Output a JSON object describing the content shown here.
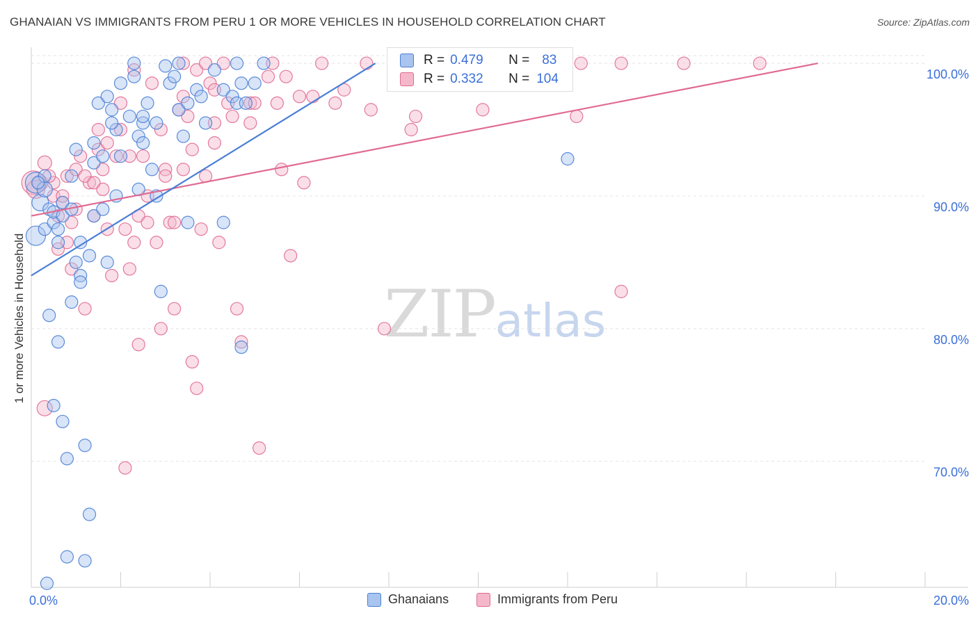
{
  "title": "GHANAIAN VS IMMIGRANTS FROM PERU 1 OR MORE VEHICLES IN HOUSEHOLD CORRELATION CHART",
  "source": "Source: ZipAtlas.com",
  "watermark": {
    "part1": "ZIP",
    "part2": "atlas"
  },
  "colors": {
    "ghanaians": "#4a7fd6",
    "ghanaians_fill": "#a9c4ee",
    "peru": "#e06a92",
    "peru_fill": "#f5b8cb",
    "axis_label": "#3a6fd8",
    "grid": "#e3e3e3"
  },
  "stats": {
    "ghanaians": {
      "r_label": "R =",
      "r": "0.479",
      "n_label": "N =",
      "n": "83"
    },
    "peru": {
      "r_label": "R =",
      "r": "0.332",
      "n_label": "N =",
      "n": "104"
    }
  },
  "legend": {
    "ghanaians": "Ghanaians",
    "peru": "Immigrants from Peru"
  },
  "chart_data": {
    "type": "scatter",
    "title": "GHANAIAN VS IMMIGRANTS FROM PERU 1 OR MORE VEHICLES IN HOUSEHOLD CORRELATION CHART",
    "xlabel": "",
    "ylabel": "1 or more Vehicles in Household",
    "xlim": [
      0,
      20
    ],
    "ylim": [
      60.5,
      101
    ],
    "x_tick_labels": [
      "0.0%",
      "20.0%"
    ],
    "y_ticks": [
      70,
      80,
      90,
      100
    ],
    "y_tick_labels": [
      "70.0%",
      "80.0%",
      "90.0%",
      "100.0%"
    ],
    "grid": true,
    "legend_position": "bottom-center",
    "series": [
      {
        "name": "Ghanaians",
        "trend": {
          "x": [
            0.0,
            7.7
          ],
          "y": [
            84.0,
            100.0
          ]
        },
        "points": [
          [
            0.1,
            91.0,
            15
          ],
          [
            0.1,
            87.0,
            14
          ],
          [
            0.2,
            89.5,
            12
          ],
          [
            0.3,
            90.5,
            11
          ],
          [
            0.3,
            91.5,
            9
          ],
          [
            0.3,
            87.5,
            9
          ],
          [
            0.4,
            89.0,
            9
          ],
          [
            0.4,
            81.0,
            9
          ],
          [
            0.5,
            88.0,
            9
          ],
          [
            0.5,
            88.8,
            9
          ],
          [
            0.5,
            74.2,
            9
          ],
          [
            0.6,
            87.5,
            9
          ],
          [
            0.6,
            86.5,
            9
          ],
          [
            0.6,
            79.0,
            9
          ],
          [
            0.7,
            89.5,
            9
          ],
          [
            0.7,
            88.5,
            9
          ],
          [
            0.7,
            73.0,
            9
          ],
          [
            0.8,
            70.2,
            9
          ],
          [
            0.8,
            62.8,
            9
          ],
          [
            0.9,
            89.0,
            9
          ],
          [
            0.9,
            82.0,
            9
          ],
          [
            1.0,
            93.5,
            9
          ],
          [
            1.0,
            85.0,
            9
          ],
          [
            1.1,
            84.0,
            9
          ],
          [
            1.1,
            83.5,
            9
          ],
          [
            1.1,
            86.5,
            9
          ],
          [
            1.2,
            71.2,
            9
          ],
          [
            1.2,
            62.5,
            9
          ],
          [
            1.3,
            66.0,
            9
          ],
          [
            1.4,
            94.0,
            9
          ],
          [
            1.4,
            92.5,
            9
          ],
          [
            1.4,
            88.5,
            9
          ],
          [
            1.5,
            97.0,
            9
          ],
          [
            1.6,
            93.0,
            9
          ],
          [
            1.6,
            89.0,
            9
          ],
          [
            1.7,
            97.5,
            9
          ],
          [
            1.7,
            85.0,
            9
          ],
          [
            1.8,
            96.5,
            9
          ],
          [
            1.9,
            95.0,
            9
          ],
          [
            2.0,
            98.5,
            9
          ],
          [
            2.0,
            93.0,
            9
          ],
          [
            2.2,
            96.0,
            9
          ],
          [
            2.3,
            99.0,
            9
          ],
          [
            2.4,
            94.5,
            9
          ],
          [
            2.5,
            95.5,
            9
          ],
          [
            2.5,
            96.0,
            9
          ],
          [
            2.6,
            97.0,
            9
          ],
          [
            2.7,
            92.0,
            9
          ],
          [
            2.8,
            95.5,
            9
          ],
          [
            2.8,
            90.0,
            9
          ],
          [
            3.1,
            98.5,
            9
          ],
          [
            3.2,
            99.0,
            9
          ],
          [
            3.3,
            96.5,
            9
          ],
          [
            3.4,
            94.5,
            9
          ],
          [
            3.5,
            97.0,
            9
          ],
          [
            3.7,
            98.0,
            9
          ],
          [
            3.8,
            97.5,
            9
          ],
          [
            3.9,
            95.5,
            9
          ],
          [
            4.1,
            99.5,
            9
          ],
          [
            4.3,
            98.0,
            9
          ],
          [
            4.5,
            97.5,
            9
          ],
          [
            4.6,
            97.0,
            9
          ],
          [
            4.7,
            98.5,
            9
          ],
          [
            4.8,
            97.0,
            9
          ],
          [
            5.0,
            98.5,
            9
          ],
          [
            1.3,
            85.5,
            9
          ],
          [
            0.9,
            91.5,
            9
          ],
          [
            1.9,
            90.0,
            9
          ],
          [
            2.5,
            94.0,
            9
          ],
          [
            3.0,
            99.8,
            9
          ],
          [
            3.3,
            100.0,
            9
          ],
          [
            2.3,
            100.0,
            9
          ],
          [
            4.6,
            100.0,
            9
          ],
          [
            3.5,
            88.0,
            9
          ],
          [
            4.3,
            88.0,
            9
          ],
          [
            2.9,
            82.8,
            9
          ],
          [
            4.7,
            78.6,
            9
          ],
          [
            12.0,
            92.8,
            9
          ],
          [
            0.35,
            60.8,
            9
          ],
          [
            5.2,
            100.0,
            9
          ],
          [
            0.15,
            91.0,
            9
          ],
          [
            2.4,
            90.5,
            9
          ],
          [
            1.8,
            95.5,
            9
          ]
        ]
      },
      {
        "name": "Immigrants from Peru",
        "trend": {
          "x": [
            0.0,
            17.6
          ],
          "y": [
            88.5,
            100.0
          ]
        },
        "points": [
          [
            0.05,
            91.0,
            17
          ],
          [
            0.1,
            90.5,
            13
          ],
          [
            0.2,
            91.0,
            11
          ],
          [
            0.3,
            92.5,
            10
          ],
          [
            0.3,
            74.0,
            11
          ],
          [
            0.5,
            91.0,
            9
          ],
          [
            0.5,
            90.0,
            9
          ],
          [
            0.6,
            86.0,
            9
          ],
          [
            0.6,
            88.5,
            9
          ],
          [
            0.7,
            89.5,
            9
          ],
          [
            0.8,
            91.5,
            9
          ],
          [
            0.9,
            88.0,
            9
          ],
          [
            0.9,
            84.5,
            9
          ],
          [
            1.0,
            92.0,
            9
          ],
          [
            1.1,
            93.0,
            9
          ],
          [
            1.2,
            81.5,
            9
          ],
          [
            1.3,
            91.0,
            9
          ],
          [
            1.4,
            88.5,
            9
          ],
          [
            1.5,
            93.5,
            9
          ],
          [
            1.5,
            95.0,
            9
          ],
          [
            1.6,
            90.5,
            9
          ],
          [
            1.7,
            87.5,
            9
          ],
          [
            1.8,
            84.0,
            9
          ],
          [
            1.9,
            93.0,
            9
          ],
          [
            2.0,
            97.0,
            9
          ],
          [
            2.1,
            87.5,
            9
          ],
          [
            2.1,
            69.5,
            9
          ],
          [
            2.2,
            84.5,
            9
          ],
          [
            2.3,
            86.5,
            9
          ],
          [
            2.4,
            88.5,
            9
          ],
          [
            2.4,
            78.8,
            9
          ],
          [
            2.5,
            93.0,
            9
          ],
          [
            2.6,
            90.0,
            9
          ],
          [
            2.7,
            98.5,
            9
          ],
          [
            2.8,
            86.5,
            9
          ],
          [
            2.9,
            95.0,
            9
          ],
          [
            2.9,
            80.0,
            9
          ],
          [
            3.0,
            92.0,
            9
          ],
          [
            3.1,
            88.0,
            9
          ],
          [
            3.2,
            88.0,
            9
          ],
          [
            3.2,
            81.5,
            9
          ],
          [
            3.3,
            96.5,
            9
          ],
          [
            3.4,
            97.5,
            9
          ],
          [
            3.5,
            96.0,
            9
          ],
          [
            3.6,
            77.5,
            9
          ],
          [
            3.7,
            99.5,
            9
          ],
          [
            3.7,
            75.5,
            9
          ],
          [
            3.8,
            87.5,
            9
          ],
          [
            3.9,
            91.5,
            9
          ],
          [
            4.0,
            98.5,
            9
          ],
          [
            4.1,
            95.5,
            9
          ],
          [
            4.2,
            86.5,
            9
          ],
          [
            4.4,
            97.0,
            9
          ],
          [
            4.6,
            81.5,
            9
          ],
          [
            4.7,
            79.0,
            9
          ],
          [
            4.9,
            97.0,
            9
          ],
          [
            5.1,
            71.0,
            9
          ],
          [
            5.3,
            99.0,
            9
          ],
          [
            5.5,
            97.0,
            9
          ],
          [
            5.6,
            92.0,
            9
          ],
          [
            5.8,
            85.5,
            9
          ],
          [
            6.1,
            91.0,
            9
          ],
          [
            6.5,
            100.0,
            9
          ],
          [
            6.8,
            97.0,
            9
          ],
          [
            7.0,
            98.0,
            9
          ],
          [
            7.5,
            100.0,
            9
          ],
          [
            7.6,
            96.5,
            9
          ],
          [
            7.9,
            80.0,
            9
          ],
          [
            8.5,
            95.0,
            9
          ],
          [
            8.6,
            96.0,
            9
          ],
          [
            10.1,
            96.5,
            9
          ],
          [
            12.2,
            96.0,
            9
          ],
          [
            12.3,
            100.0,
            9
          ],
          [
            13.2,
            100.0,
            9
          ],
          [
            14.6,
            100.0,
            9
          ],
          [
            16.3,
            100.0,
            9
          ],
          [
            0.4,
            91.5,
            9
          ],
          [
            0.8,
            86.5,
            9
          ],
          [
            1.2,
            91.5,
            9
          ],
          [
            1.6,
            92.0,
            9
          ],
          [
            2.2,
            93.0,
            9
          ],
          [
            2.6,
            88.0,
            9
          ],
          [
            3.0,
            91.5,
            9
          ],
          [
            3.4,
            92.0,
            9
          ],
          [
            3.6,
            93.5,
            9
          ],
          [
            4.1,
            98.0,
            9
          ],
          [
            4.5,
            96.0,
            9
          ],
          [
            5.0,
            97.0,
            9
          ],
          [
            5.7,
            99.0,
            9
          ],
          [
            6.0,
            97.5,
            9
          ],
          [
            1.4,
            91.0,
            9
          ],
          [
            1.0,
            89.0,
            9
          ],
          [
            0.7,
            90.0,
            9
          ],
          [
            4.3,
            100.0,
            9
          ],
          [
            3.9,
            100.0,
            9
          ],
          [
            5.4,
            100.0,
            9
          ],
          [
            4.9,
            95.5,
            9
          ],
          [
            2.0,
            95.0,
            9
          ],
          [
            1.7,
            94.0,
            9
          ],
          [
            13.2,
            82.8,
            9
          ],
          [
            4.1,
            94.0,
            9
          ],
          [
            3.4,
            100.0,
            9
          ],
          [
            6.3,
            97.5,
            9
          ],
          [
            2.3,
            99.5,
            9
          ]
        ]
      }
    ]
  }
}
